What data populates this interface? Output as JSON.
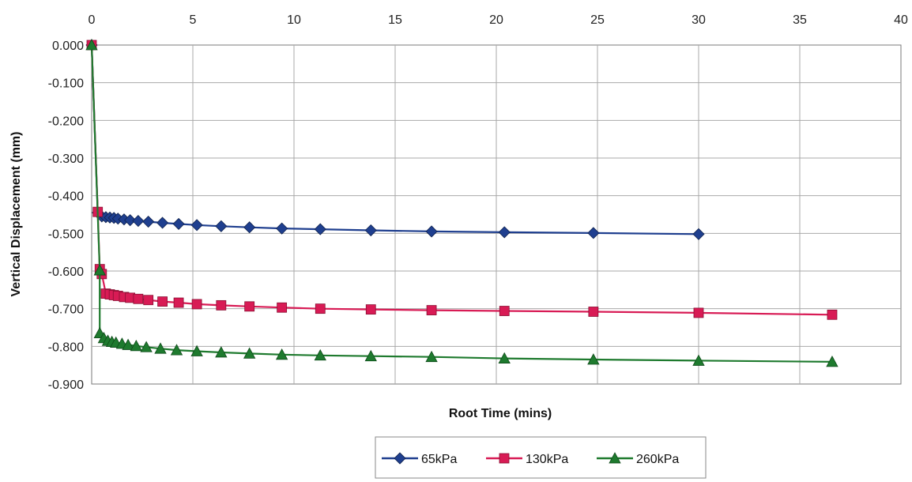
{
  "chart_data": {
    "type": "line",
    "title": "",
    "xlabel": "Root Time (mins)",
    "ylabel": "Vertical Displacement (mm)",
    "xlim": [
      0,
      40
    ],
    "ylim": [
      -0.9,
      0.0
    ],
    "x_ticks": [
      "0",
      "5",
      "10",
      "15",
      "20",
      "25",
      "30",
      "35",
      "40"
    ],
    "y_ticks": [
      "0.000",
      "-0.100",
      "-0.200",
      "-0.300",
      "-0.400",
      "-0.500",
      "-0.600",
      "-0.700",
      "-0.800",
      "-0.900"
    ],
    "x_axis_position": "top",
    "grid": true,
    "legend_position": "bottom-center",
    "series": [
      {
        "name": "65kPa",
        "color": "#1f3f8f",
        "marker": "diamond",
        "points": [
          [
            0,
            0.0
          ],
          [
            0.3,
            -0.445
          ],
          [
            0.5,
            -0.455
          ],
          [
            0.7,
            -0.457
          ],
          [
            0.9,
            -0.458
          ],
          [
            1.1,
            -0.459
          ],
          [
            1.3,
            -0.461
          ],
          [
            1.6,
            -0.463
          ],
          [
            1.9,
            -0.465
          ],
          [
            2.3,
            -0.467
          ],
          [
            2.8,
            -0.469
          ],
          [
            3.5,
            -0.472
          ],
          [
            4.3,
            -0.475
          ],
          [
            5.2,
            -0.478
          ],
          [
            6.4,
            -0.481
          ],
          [
            7.8,
            -0.484
          ],
          [
            9.4,
            -0.487
          ],
          [
            11.3,
            -0.489
          ],
          [
            13.8,
            -0.492
          ],
          [
            16.8,
            -0.495
          ],
          [
            20.4,
            -0.497
          ],
          [
            24.8,
            -0.499
          ],
          [
            30.0,
            -0.502
          ]
        ]
      },
      {
        "name": "130kPa",
        "color": "#d81b55",
        "marker": "square",
        "points": [
          [
            0,
            0.0
          ],
          [
            0.3,
            -0.443
          ],
          [
            0.4,
            -0.595
          ],
          [
            0.5,
            -0.608
          ],
          [
            0.7,
            -0.66
          ],
          [
            0.9,
            -0.662
          ],
          [
            1.1,
            -0.664
          ],
          [
            1.3,
            -0.666
          ],
          [
            1.6,
            -0.669
          ],
          [
            1.9,
            -0.671
          ],
          [
            2.3,
            -0.674
          ],
          [
            2.8,
            -0.677
          ],
          [
            3.5,
            -0.681
          ],
          [
            4.3,
            -0.684
          ],
          [
            5.2,
            -0.688
          ],
          [
            6.4,
            -0.691
          ],
          [
            7.8,
            -0.694
          ],
          [
            9.4,
            -0.697
          ],
          [
            11.3,
            -0.7
          ],
          [
            13.8,
            -0.702
          ],
          [
            16.8,
            -0.704
          ],
          [
            20.4,
            -0.706
          ],
          [
            24.8,
            -0.708
          ],
          [
            30.0,
            -0.711
          ],
          [
            36.6,
            -0.716
          ]
        ]
      },
      {
        "name": "260kPa",
        "color": "#1e7a2e",
        "marker": "triangle",
        "points": [
          [
            0,
            0.0
          ],
          [
            0.4,
            -0.598
          ],
          [
            0.4,
            -0.765
          ],
          [
            0.6,
            -0.778
          ],
          [
            0.8,
            -0.785
          ],
          [
            1.0,
            -0.788
          ],
          [
            1.2,
            -0.79
          ],
          [
            1.5,
            -0.793
          ],
          [
            1.8,
            -0.796
          ],
          [
            2.2,
            -0.799
          ],
          [
            2.7,
            -0.802
          ],
          [
            3.4,
            -0.806
          ],
          [
            4.2,
            -0.81
          ],
          [
            5.2,
            -0.813
          ],
          [
            6.4,
            -0.816
          ],
          [
            7.8,
            -0.819
          ],
          [
            9.4,
            -0.822
          ],
          [
            11.3,
            -0.824
          ],
          [
            13.8,
            -0.826
          ],
          [
            16.8,
            -0.828
          ],
          [
            20.4,
            -0.832
          ],
          [
            24.8,
            -0.835
          ],
          [
            30.0,
            -0.838
          ],
          [
            36.6,
            -0.841
          ]
        ]
      }
    ]
  }
}
